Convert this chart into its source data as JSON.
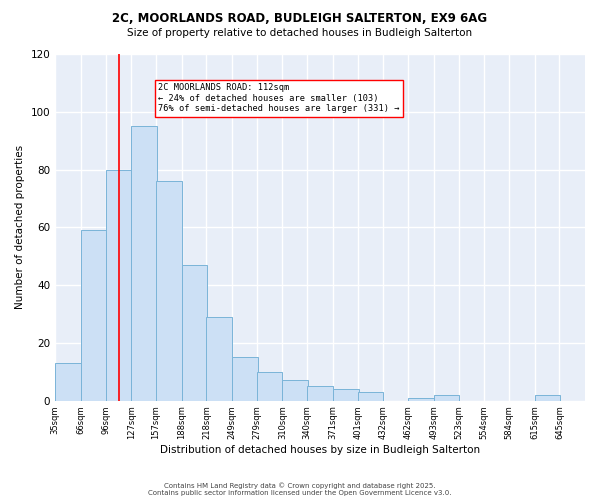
{
  "title_line1": "2C, MOORLANDS ROAD, BUDLEIGH SALTERTON, EX9 6AG",
  "title_line2": "Size of property relative to detached houses in Budleigh Salterton",
  "xlabel": "Distribution of detached houses by size in Budleigh Salterton",
  "ylabel": "Number of detached properties",
  "bar_color": "#cce0f5",
  "bar_edge_color": "#7ab4d8",
  "background_color": "#e8eef8",
  "grid_color": "white",
  "red_line_x": 112,
  "annotation_text": "2C MOORLANDS ROAD: 112sqm\n← 24% of detached houses are smaller (103)\n76% of semi-detached houses are larger (331) →",
  "annotation_box_color": "white",
  "annotation_box_edge": "red",
  "bins": [
    35,
    66,
    96,
    127,
    157,
    188,
    218,
    249,
    279,
    310,
    340,
    371,
    401,
    432,
    462,
    493,
    523,
    554,
    584,
    615,
    645
  ],
  "counts": [
    13,
    59,
    80,
    95,
    76,
    47,
    29,
    15,
    10,
    7,
    5,
    4,
    3,
    0,
    1,
    2,
    0,
    0,
    0,
    2
  ],
  "ylim": [
    0,
    120
  ],
  "yticks": [
    0,
    20,
    40,
    60,
    80,
    100,
    120
  ],
  "footer_line1": "Contains HM Land Registry data © Crown copyright and database right 2025.",
  "footer_line2": "Contains public sector information licensed under the Open Government Licence v3.0."
}
